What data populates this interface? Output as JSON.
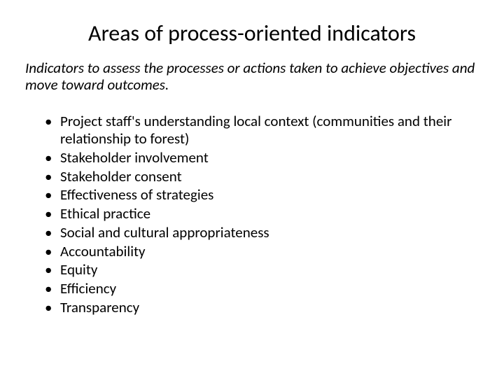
{
  "slide": {
    "title": "Areas of process-oriented indicators",
    "subtitle": "Indicators to assess the processes or actions taken to achieve objectives and move toward outcomes.",
    "bullets": [
      "Project staff's understanding local context (communities and their relationship to forest)",
      "Stakeholder involvement",
      "Stakeholder consent",
      "Effectiveness of strategies",
      "Ethical practice",
      "Social and cultural appropriateness",
      "Accountability",
      "Equity",
      "Efficiency",
      "Transparency"
    ],
    "colors": {
      "background": "#ffffff",
      "text": "#000000"
    },
    "typography": {
      "title_fontsize": 32,
      "subtitle_fontsize": 21,
      "bullet_fontsize": 21,
      "font_family": "Calibri"
    }
  }
}
